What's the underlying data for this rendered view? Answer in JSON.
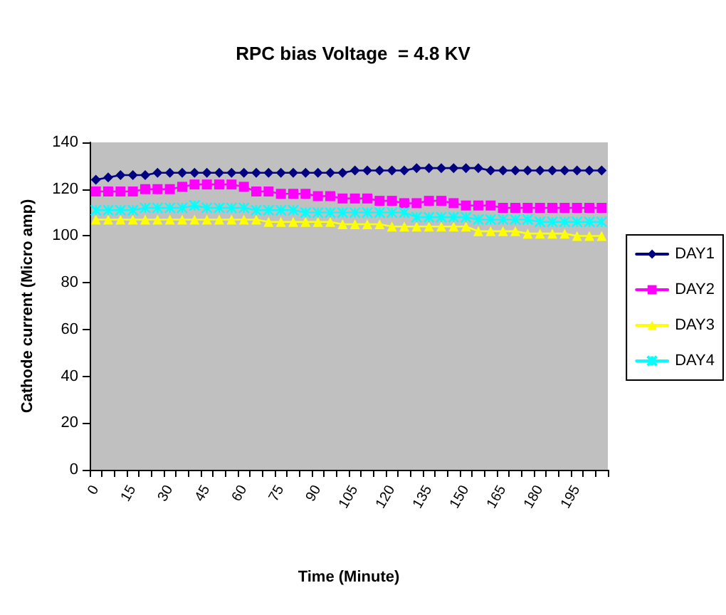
{
  "chart_data": {
    "type": "line",
    "title": "RPC bias Voltage  = 4.8 KV",
    "xlabel": "Time (Minute)",
    "ylabel": "Cathode current (Micro amp)",
    "categories": [
      "0",
      null,
      null,
      "15",
      null,
      null,
      "30",
      null,
      null,
      "45",
      null,
      null,
      "60",
      null,
      null,
      "75",
      null,
      null,
      "90",
      null,
      null,
      "105",
      null,
      null,
      "120",
      null,
      null,
      "135",
      null,
      null,
      "150",
      null,
      null,
      "165",
      null,
      null,
      "180",
      null,
      null,
      "195",
      null,
      null
    ],
    "series": [
      {
        "name": "DAY1",
        "color": "#000080",
        "marker": "diamond",
        "values": [
          124,
          125,
          126,
          126,
          126,
          127,
          127,
          127,
          127,
          127,
          127,
          127,
          127,
          127,
          127,
          127,
          127,
          127,
          127,
          127,
          127,
          128,
          128,
          128,
          128,
          128,
          129,
          129,
          129,
          129,
          129,
          129,
          128,
          128,
          128,
          128,
          128,
          128,
          128,
          128,
          128,
          128
        ]
      },
      {
        "name": "DAY2",
        "color": "#ff00ff",
        "marker": "square",
        "values": [
          119,
          119,
          119,
          119,
          120,
          120,
          120,
          121,
          122,
          122,
          122,
          122,
          121,
          119,
          119,
          118,
          118,
          118,
          117,
          117,
          116,
          116,
          116,
          115,
          115,
          114,
          114,
          115,
          115,
          114,
          113,
          113,
          113,
          112,
          112,
          112,
          112,
          112,
          112,
          112,
          112,
          112
        ]
      },
      {
        "name": "DAY3",
        "color": "#ffff00",
        "marker": "triangle",
        "values": [
          107,
          107,
          107,
          107,
          107,
          107,
          107,
          107,
          107,
          107,
          107,
          107,
          107,
          107,
          106,
          106,
          106,
          106,
          106,
          106,
          105,
          105,
          105,
          105,
          104,
          104,
          104,
          104,
          104,
          104,
          104,
          102,
          102,
          102,
          102,
          101,
          101,
          101,
          101,
          100,
          100,
          100
        ]
      },
      {
        "name": "DAY4",
        "color": "#00ffff",
        "marker": "cross",
        "values": [
          111,
          111,
          111,
          111,
          112,
          112,
          112,
          112,
          113,
          112,
          112,
          112,
          112,
          111,
          111,
          111,
          111,
          110,
          110,
          110,
          110,
          110,
          110,
          110,
          110,
          110,
          108,
          108,
          108,
          108,
          108,
          107,
          107,
          107,
          107,
          107,
          106,
          106,
          106,
          106,
          106,
          106
        ]
      }
    ],
    "ylim": [
      0,
      140
    ],
    "yticks": [
      0,
      20,
      40,
      60,
      80,
      100,
      120,
      140
    ],
    "grid": false,
    "legend": "right",
    "line_style": "solid"
  }
}
